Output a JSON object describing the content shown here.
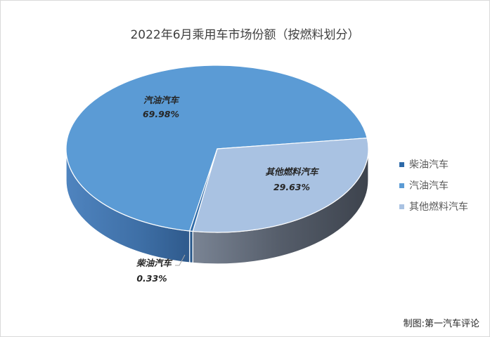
{
  "chart_data": {
    "type": "pie",
    "title": "2022年6月乘用车市场份额（按燃料划分）",
    "slices": [
      {
        "name": "柴油汽车",
        "value": 0.33,
        "label": "0.33%",
        "color": "#2e6aa8"
      },
      {
        "name": "汽油汽车",
        "value": 69.98,
        "label": "69.98%",
        "color": "#5b9bd5"
      },
      {
        "name": "其他燃料汽车",
        "value": 29.63,
        "label": "29.63%",
        "color": "#a9c2e2"
      }
    ],
    "legend_position": "right",
    "is_3d": true
  },
  "source_note": "制图:第一汽车评论"
}
